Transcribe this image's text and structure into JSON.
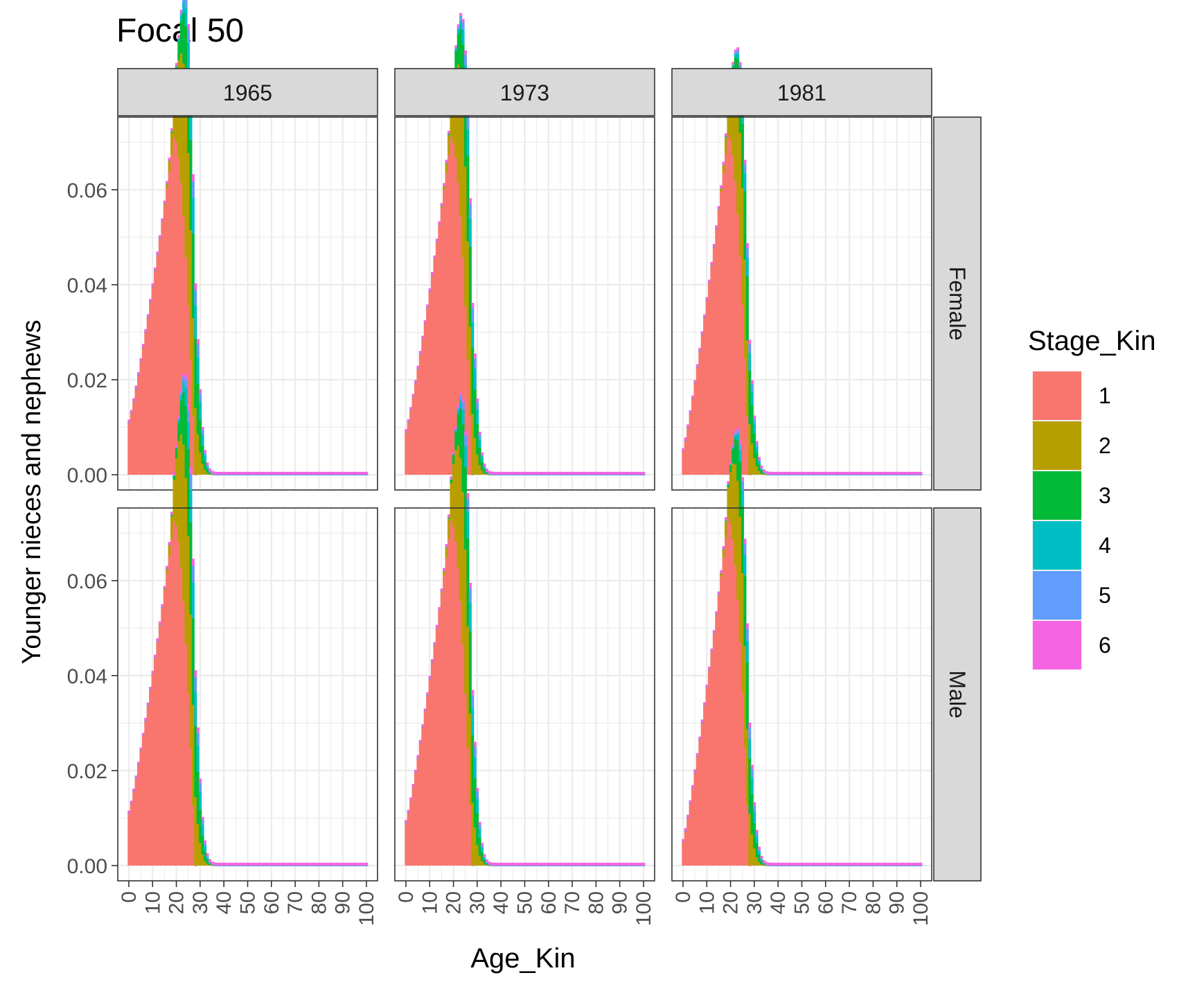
{
  "chart_data": {
    "type": "bar",
    "stacked": true,
    "title": "Focal 50",
    "xlabel": "Age_Kin",
    "ylabel": "Younger nieces and nephews",
    "facet_cols": [
      "1965",
      "1973",
      "1981"
    ],
    "facet_rows": [
      "Female",
      "Male"
    ],
    "xlim": [
      0,
      100
    ],
    "ylim": [
      0,
      0.075
    ],
    "x_ticks": [
      "0",
      "10",
      "20",
      "30",
      "40",
      "50",
      "60",
      "70",
      "80",
      "90",
      "100"
    ],
    "y_ticks": [
      "0.00",
      "0.02",
      "0.04",
      "0.06"
    ],
    "grid": true,
    "legend": {
      "title": "Stage_Kin",
      "placement": "right",
      "entries": [
        "1",
        "2",
        "3",
        "4",
        "5",
        "6"
      ],
      "colors": [
        "#F8766D",
        "#B79F00",
        "#00BA38",
        "#00BFC4",
        "#619CFF",
        "#F564E3"
      ]
    },
    "panels": [
      {
        "col": "1965",
        "row": "Female",
        "start_total": 0.011,
        "peak_total": 0.071,
        "peak_age": 19,
        "s1_end": 28,
        "s2_peak": 0.034,
        "s3_peak": 0.019,
        "s4_peak": 0.0075,
        "s5_peak": 0.0035,
        "s6_peak": 0.0015
      },
      {
        "col": "1973",
        "row": "Female",
        "start_total": 0.009,
        "peak_total": 0.071,
        "peak_age": 19,
        "s1_end": 28,
        "s2_peak": 0.031,
        "s3_peak": 0.018,
        "s4_peak": 0.006,
        "s5_peak": 0.003,
        "s6_peak": 0.0012
      },
      {
        "col": "1981",
        "row": "Female",
        "start_total": 0.005,
        "peak_total": 0.0715,
        "peak_age": 19,
        "s1_end": 28,
        "s2_peak": 0.026,
        "s3_peak": 0.0145,
        "s4_peak": 0.004,
        "s5_peak": 0.002,
        "s6_peak": 0.001
      },
      {
        "col": "1965",
        "row": "Male",
        "start_total": 0.011,
        "peak_total": 0.0725,
        "peak_age": 19,
        "s1_end": 28,
        "s2_peak": 0.035,
        "s3_peak": 0.0195,
        "s4_peak": 0.0075,
        "s5_peak": 0.0035,
        "s6_peak": 0.0015
      },
      {
        "col": "1973",
        "row": "Male",
        "start_total": 0.009,
        "peak_total": 0.0725,
        "peak_age": 19,
        "s1_end": 28,
        "s2_peak": 0.032,
        "s3_peak": 0.0185,
        "s4_peak": 0.006,
        "s5_peak": 0.003,
        "s6_peak": 0.0012
      },
      {
        "col": "1981",
        "row": "Male",
        "start_total": 0.005,
        "peak_total": 0.073,
        "peak_age": 19,
        "s1_end": 28,
        "s2_peak": 0.0265,
        "s3_peak": 0.015,
        "s4_peak": 0.0045,
        "s5_peak": 0.0025,
        "s6_peak": 0.0012
      }
    ]
  }
}
